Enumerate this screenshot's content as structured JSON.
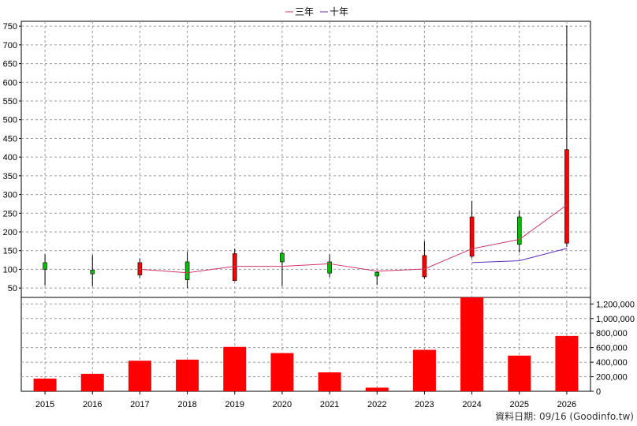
{
  "chart_data": {
    "type": "candlestick+line+bar",
    "legend": [
      {
        "name": "三年",
        "color": "#d0336a"
      },
      {
        "name": "十年",
        "color": "#5b2bc4"
      }
    ],
    "categories": [
      "2015",
      "2016",
      "2017",
      "2018",
      "2019",
      "2020",
      "2021",
      "2022",
      "2023",
      "2024",
      "2025",
      "2026"
    ],
    "price_axis": {
      "ticks": [
        "50",
        "100",
        "150",
        "200",
        "250",
        "300",
        "350",
        "400",
        "450",
        "500",
        "550",
        "600",
        "650",
        "700",
        "750"
      ],
      "ylim": [
        25,
        763
      ]
    },
    "volume_axis": {
      "ticks": [
        "0",
        "200,000",
        "400,000",
        "600,000",
        "800,000",
        "1,000,000",
        "1,200,000"
      ],
      "ylim": [
        0,
        1290000
      ]
    },
    "candles": [
      {
        "year": "2015",
        "open": 100,
        "high": 140,
        "low": 57,
        "close": 118,
        "color": "green"
      },
      {
        "year": "2016",
        "open": 88,
        "high": 138,
        "low": 55,
        "close": 98,
        "color": "green"
      },
      {
        "year": "2017",
        "open": 118,
        "high": 129,
        "low": 78,
        "close": 85,
        "color": "red"
      },
      {
        "year": "2018",
        "open": 72,
        "high": 148,
        "low": 50,
        "close": 120,
        "color": "green"
      },
      {
        "year": "2019",
        "open": 142,
        "high": 155,
        "low": 68,
        "close": 70,
        "color": "red"
      },
      {
        "year": "2020",
        "open": 120,
        "high": 148,
        "low": 55,
        "close": 143,
        "color": "green"
      },
      {
        "year": "2021",
        "open": 90,
        "high": 140,
        "low": 80,
        "close": 120,
        "color": "green"
      },
      {
        "year": "2022",
        "open": 82,
        "high": 96,
        "low": 58,
        "close": 92,
        "color": "green"
      },
      {
        "year": "2023",
        "open": 137,
        "high": 175,
        "low": 75,
        "close": 80,
        "color": "red"
      },
      {
        "year": "2024",
        "open": 240,
        "high": 283,
        "low": 130,
        "close": 135,
        "color": "red"
      },
      {
        "year": "2025",
        "open": 167,
        "high": 258,
        "low": 145,
        "close": 240,
        "color": "green"
      },
      {
        "year": "2026",
        "open": 420,
        "high": 752,
        "low": 160,
        "close": 170,
        "color": "red"
      }
    ],
    "series": [
      {
        "name": "三年",
        "color": "#d0336a",
        "points": [
          [
            "2017",
            100
          ],
          [
            "2018",
            91
          ],
          [
            "2019",
            108
          ],
          [
            "2020",
            108
          ],
          [
            "2021",
            115
          ],
          [
            "2022",
            95
          ],
          [
            "2023",
            101
          ],
          [
            "2024",
            155
          ],
          [
            "2025",
            180
          ],
          [
            "2026",
            272
          ]
        ]
      },
      {
        "name": "十年",
        "color": "#5b2bc4",
        "points": [
          [
            "2024",
            118
          ],
          [
            "2025",
            123
          ],
          [
            "2026",
            156
          ]
        ]
      }
    ],
    "volumes": [
      175000,
      240000,
      420000,
      435000,
      610000,
      525000,
      260000,
      50000,
      570000,
      1290000,
      490000,
      760000
    ],
    "grid": true
  },
  "source_label": "資料日期: 09/16  (Goodinfo.tw)"
}
